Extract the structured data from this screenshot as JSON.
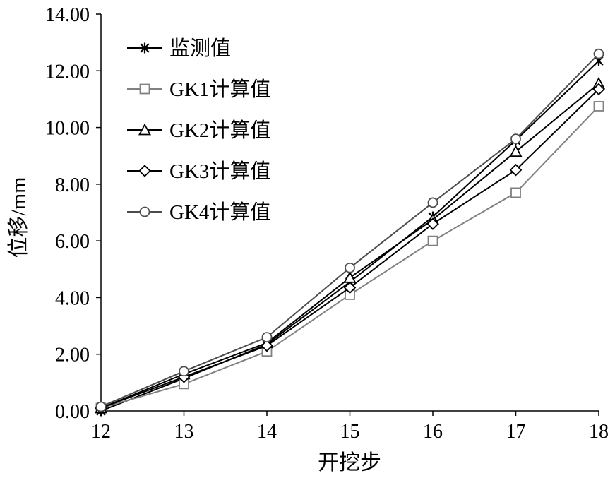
{
  "chart_data": {
    "type": "line",
    "title": "",
    "xlabel": "开挖步",
    "ylabel": "位移/mm",
    "x": [
      12,
      13,
      14,
      15,
      16,
      17,
      18
    ],
    "xticks": [
      "12",
      "13",
      "14",
      "15",
      "16",
      "17",
      "18"
    ],
    "ylim": [
      0,
      14
    ],
    "yticks": [
      "0.00",
      "2.00",
      "4.00",
      "6.00",
      "8.00",
      "10.00",
      "12.00",
      "14.00"
    ],
    "grid": false,
    "legend_position": "top-left",
    "series": [
      {
        "name": "监测值",
        "marker": "asterisk",
        "color": "#000000",
        "values": [
          0.0,
          1.15,
          2.35,
          4.55,
          6.85,
          9.55,
          12.35
        ]
      },
      {
        "name": "GK1计算值",
        "marker": "square",
        "color": "#808080",
        "values": [
          0.1,
          0.95,
          2.1,
          4.1,
          6.0,
          7.7,
          10.75
        ]
      },
      {
        "name": "GK2计算值",
        "marker": "triangle",
        "color": "#000000",
        "values": [
          0.1,
          1.3,
          2.4,
          4.7,
          6.75,
          9.15,
          11.55
        ]
      },
      {
        "name": "GK3计算值",
        "marker": "diamond",
        "color": "#000000",
        "values": [
          0.1,
          1.2,
          2.3,
          4.35,
          6.6,
          8.5,
          11.35
        ]
      },
      {
        "name": "GK4计算值",
        "marker": "circle",
        "color": "#4d4d4d",
        "values": [
          0.15,
          1.4,
          2.6,
          5.05,
          7.35,
          9.6,
          12.6
        ]
      }
    ]
  }
}
